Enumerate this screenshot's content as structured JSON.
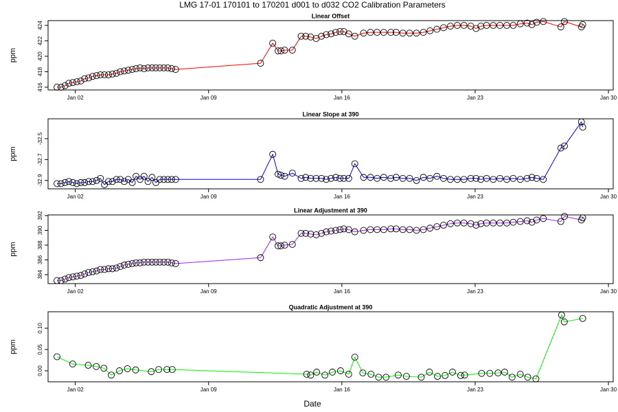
{
  "title": "LMG   17-01    170101 to 170201    d001 to d032   CO2 Calibration Parameters",
  "xlabel": "Date",
  "chart_data": [
    {
      "type": "line",
      "title": "Linear Offset",
      "ylabel": "ppm",
      "color": "#ff0000",
      "x": [
        1.04,
        1.25,
        1.46,
        1.66,
        1.87,
        2.08,
        2.29,
        2.49,
        2.7,
        2.91,
        3.12,
        3.32,
        3.53,
        3.74,
        3.95,
        4.16,
        4.36,
        4.57,
        4.78,
        4.99,
        5.19,
        5.4,
        5.61,
        5.82,
        6.03,
        6.23,
        6.44,
        6.65,
        6.86,
        7.06,
        7.27,
        11.73,
        12.37,
        12.65,
        12.8,
        13.0,
        13.4,
        13.86,
        14.1,
        14.36,
        14.65,
        14.93,
        15.18,
        15.43,
        15.68,
        15.9,
        16.1,
        16.36,
        16.68,
        17.14,
        17.5,
        17.85,
        18.2,
        18.57,
        18.85,
        19.2,
        19.56,
        19.92,
        20.28,
        20.63,
        20.99,
        21.34,
        21.7,
        22.06,
        22.41,
        22.77,
        23.05,
        23.3,
        23.6,
        23.95,
        24.3,
        24.66,
        25.0,
        25.37,
        25.73,
        25.98,
        26.23,
        26.58,
        27.5,
        27.69,
        28.58,
        28.65
      ],
      "values": [
        416.0,
        416.0,
        416.2,
        416.5,
        416.6,
        416.7,
        416.8,
        417.1,
        417.2,
        417.4,
        417.5,
        417.6,
        417.6,
        417.6,
        417.7,
        417.8,
        418.0,
        418.1,
        418.2,
        418.3,
        418.4,
        418.5,
        418.4,
        418.5,
        418.5,
        418.5,
        418.5,
        418.5,
        418.5,
        418.4,
        418.3,
        419.1,
        421.7,
        420.7,
        420.7,
        420.8,
        420.8,
        422.6,
        422.6,
        422.5,
        422.3,
        422.6,
        422.8,
        422.9,
        423.1,
        423.2,
        423.2,
        422.9,
        422.6,
        423.0,
        423.1,
        423.1,
        423.1,
        423.1,
        423.1,
        423.0,
        423.0,
        423.0,
        423.1,
        423.3,
        423.5,
        423.7,
        423.9,
        424.0,
        424.0,
        423.9,
        423.6,
        423.9,
        424.0,
        424.0,
        424.0,
        424.0,
        424.0,
        424.2,
        424.3,
        424.1,
        424.4,
        424.5,
        423.8,
        424.5,
        423.8,
        424.1
      ],
      "xlim": [
        0.57,
        30.25
      ],
      "ylim": [
        415.64,
        424.62
      ],
      "xticks": [
        {
          "value": 2,
          "label": "Jan 02"
        },
        {
          "value": 9,
          "label": "Jan 09"
        },
        {
          "value": 16,
          "label": "Jan 16"
        },
        {
          "value": 23,
          "label": "Jan 23"
        },
        {
          "value": 30,
          "label": "Jan 30"
        }
      ],
      "yticks": [
        416,
        418,
        420,
        422,
        424
      ]
    },
    {
      "type": "line",
      "title": "Linear Slope at 390",
      "ylabel": "ppm",
      "color": "#0000ff",
      "x": [
        1.04,
        1.25,
        1.46,
        1.66,
        1.87,
        2.08,
        2.29,
        2.49,
        2.7,
        2.91,
        3.12,
        3.32,
        3.53,
        3.74,
        3.95,
        4.16,
        4.36,
        4.57,
        4.78,
        4.99,
        5.19,
        5.4,
        5.61,
        5.82,
        6.03,
        6.23,
        6.44,
        6.65,
        6.86,
        7.06,
        7.27,
        11.73,
        12.37,
        12.65,
        12.8,
        13.0,
        13.4,
        13.86,
        14.1,
        14.36,
        14.65,
        14.93,
        15.18,
        15.43,
        15.68,
        15.9,
        16.1,
        16.36,
        16.68,
        17.14,
        17.5,
        17.85,
        18.2,
        18.57,
        18.85,
        19.2,
        19.56,
        19.92,
        20.28,
        20.63,
        20.99,
        21.34,
        21.7,
        22.06,
        22.41,
        22.77,
        23.05,
        23.3,
        23.6,
        23.95,
        24.3,
        24.66,
        25.0,
        25.37,
        25.73,
        25.98,
        26.23,
        26.58,
        27.5,
        27.69,
        28.58,
        28.65
      ],
      "values": [
        -32.93,
        -32.93,
        -32.92,
        -32.91,
        -32.92,
        -32.93,
        -32.92,
        -32.92,
        -32.91,
        -32.91,
        -32.9,
        -32.88,
        -32.94,
        -32.91,
        -32.91,
        -32.89,
        -32.89,
        -32.91,
        -32.89,
        -32.92,
        -32.86,
        -32.89,
        -32.86,
        -32.91,
        -32.87,
        -32.92,
        -32.89,
        -32.89,
        -32.89,
        -32.89,
        -32.89,
        -32.89,
        -32.65,
        -32.84,
        -32.85,
        -32.86,
        -32.83,
        -32.88,
        -32.87,
        -32.88,
        -32.88,
        -32.88,
        -32.89,
        -32.88,
        -32.87,
        -32.88,
        -32.88,
        -32.88,
        -32.74,
        -32.87,
        -32.87,
        -32.88,
        -32.87,
        -32.88,
        -32.87,
        -32.88,
        -32.88,
        -32.9,
        -32.87,
        -32.88,
        -32.86,
        -32.88,
        -32.89,
        -32.89,
        -32.89,
        -32.88,
        -32.88,
        -32.89,
        -32.88,
        -32.89,
        -32.88,
        -32.89,
        -32.88,
        -32.89,
        -32.88,
        -32.87,
        -32.88,
        -32.89,
        -32.59,
        -32.57,
        -32.34,
        -32.39
      ],
      "xlim": [
        0.57,
        30.25
      ],
      "ylim": [
        -32.98,
        -32.31
      ],
      "xticks": [
        {
          "value": 2,
          "label": "Jan 02"
        },
        {
          "value": 9,
          "label": "Jan 09"
        },
        {
          "value": 16,
          "label": "Jan 16"
        },
        {
          "value": 23,
          "label": "Jan 23"
        },
        {
          "value": 30,
          "label": "Jan 30"
        }
      ],
      "yticks": [
        -32.9,
        -32.7,
        -32.5
      ]
    },
    {
      "type": "line",
      "title": "Linear Adjustment at 390",
      "ylabel": "ppm",
      "color": "#a020f0",
      "x": [
        1.04,
        1.25,
        1.46,
        1.66,
        1.87,
        2.08,
        2.29,
        2.49,
        2.7,
        2.91,
        3.12,
        3.32,
        3.53,
        3.74,
        3.95,
        4.16,
        4.36,
        4.57,
        4.78,
        4.99,
        5.19,
        5.4,
        5.61,
        5.82,
        6.03,
        6.23,
        6.44,
        6.65,
        6.86,
        7.06,
        7.27,
        11.73,
        12.37,
        12.65,
        12.8,
        13.0,
        13.4,
        13.86,
        14.1,
        14.36,
        14.65,
        14.93,
        15.18,
        15.43,
        15.68,
        15.9,
        16.1,
        16.36,
        16.68,
        17.14,
        17.5,
        17.85,
        18.2,
        18.57,
        18.85,
        19.2,
        19.56,
        19.92,
        20.28,
        20.63,
        20.99,
        21.34,
        21.7,
        22.06,
        22.41,
        22.77,
        23.05,
        23.3,
        23.6,
        23.95,
        24.3,
        24.66,
        25.0,
        25.37,
        25.73,
        25.98,
        26.23,
        26.58,
        27.5,
        27.69,
        28.58,
        28.65
      ],
      "values": [
        383.2,
        383.2,
        383.4,
        383.6,
        383.7,
        383.8,
        383.9,
        384.1,
        384.3,
        384.4,
        384.5,
        384.7,
        384.7,
        384.8,
        384.8,
        384.9,
        385.1,
        385.3,
        385.4,
        385.5,
        385.6,
        385.6,
        385.7,
        385.7,
        385.7,
        385.7,
        385.7,
        385.7,
        385.7,
        385.6,
        385.5,
        386.3,
        389.1,
        387.9,
        387.9,
        388.0,
        388.1,
        389.6,
        389.6,
        389.5,
        389.4,
        389.6,
        389.8,
        389.9,
        390.0,
        390.1,
        390.2,
        390.1,
        389.8,
        390.0,
        390.1,
        390.1,
        390.1,
        390.2,
        390.2,
        390.1,
        390.1,
        390.0,
        390.1,
        390.3,
        390.5,
        390.7,
        390.9,
        391.0,
        391.0,
        390.9,
        390.7,
        390.9,
        391.0,
        391.0,
        391.0,
        391.0,
        391.1,
        391.2,
        391.3,
        391.1,
        391.4,
        391.6,
        391.2,
        391.9,
        391.4,
        391.7
      ],
      "xlim": [
        0.57,
        30.25
      ],
      "ylim": [
        382.79,
        392.09
      ],
      "xticks": [
        {
          "value": 2,
          "label": "Jan 02"
        },
        {
          "value": 9,
          "label": "Jan 09"
        },
        {
          "value": 16,
          "label": "Jan 16"
        },
        {
          "value": 23,
          "label": "Jan 23"
        },
        {
          "value": 30,
          "label": "Jan 30"
        }
      ],
      "yticks": [
        384,
        386,
        388,
        390,
        392
      ]
    },
    {
      "type": "line",
      "title": "Quadratic Adjustment at 390",
      "ylabel": "ppm",
      "color": "#00ee00",
      "x": [
        1.04,
        1.86,
        2.68,
        3.1,
        3.5,
        3.89,
        4.32,
        4.74,
        5.17,
        5.99,
        6.38,
        6.81,
        7.09,
        14.15,
        14.36,
        14.68,
        15.11,
        15.5,
        15.93,
        16.36,
        16.68,
        17.1,
        17.53,
        17.93,
        18.32,
        18.96,
        19.39,
        20.17,
        20.6,
        21.02,
        21.42,
        21.81,
        22.24,
        22.45,
        23.34,
        23.77,
        24.2,
        24.55,
        24.94,
        25.37,
        25.76,
        26.19,
        27.54,
        27.68,
        28.65
      ],
      "values": [
        0.033,
        0.016,
        0.013,
        0.01,
        0.006,
        -0.01,
        0.0,
        0.005,
        0.002,
        -0.002,
        0.003,
        0.003,
        0.003,
        -0.008,
        -0.01,
        -0.003,
        -0.01,
        -0.003,
        0.0,
        -0.008,
        0.032,
        -0.005,
        -0.008,
        -0.015,
        -0.015,
        -0.01,
        -0.013,
        -0.015,
        -0.003,
        -0.013,
        -0.011,
        -0.003,
        -0.011,
        -0.01,
        -0.006,
        -0.006,
        -0.005,
        -0.003,
        -0.015,
        -0.008,
        -0.015,
        -0.019,
        0.131,
        0.115,
        0.123
      ],
      "xlim": [
        0.57,
        30.25
      ],
      "ylim": [
        -0.0258,
        0.1387
      ],
      "xticks": [
        {
          "value": 2,
          "label": "Jan 02"
        },
        {
          "value": 9,
          "label": "Jan 09"
        },
        {
          "value": 16,
          "label": "Jan 16"
        },
        {
          "value": 23,
          "label": "Jan 23"
        },
        {
          "value": 30,
          "label": "Jan 30"
        }
      ],
      "yticks": [
        {
          "value": 0,
          "label": "0.00"
        },
        0.05,
        {
          "value": 0.1,
          "label": "0.10"
        }
      ]
    }
  ]
}
